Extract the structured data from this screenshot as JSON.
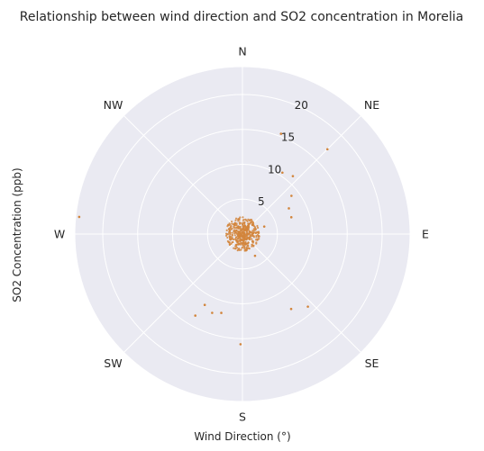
{
  "chart_data": {
    "type": "scatter",
    "projection": "polar",
    "title": "Relationship between wind direction and SO2 concentration in Morelia",
    "xlabel": "Wind Direction (°)",
    "ylabel": "SO2 Concentration (ppb)",
    "theta_direction": "clockwise",
    "theta_zero": "north",
    "direction_labels": [
      {
        "text": "N",
        "angle": 0
      },
      {
        "text": "NE",
        "angle": 45
      },
      {
        "text": "E",
        "angle": 90
      },
      {
        "text": "SE",
        "angle": 135
      },
      {
        "text": "S",
        "angle": 180
      },
      {
        "text": "SW",
        "angle": 225
      },
      {
        "text": "W",
        "angle": 270
      },
      {
        "text": "NW",
        "angle": 315
      }
    ],
    "r_ticks": [
      5,
      10,
      15,
      20
    ],
    "r_tick_labels": [
      "5",
      "10",
      "15",
      "20"
    ],
    "rlim": [
      0,
      24
    ],
    "r_label_angle": 22.5,
    "grid": true,
    "marker_color": "#d2853c",
    "series": [
      {
        "name": "SO2 observations",
        "theta_deg": [
          21,
          33,
          45,
          41,
          52,
          61,
          71,
          71,
          138,
          147,
          150,
          181,
          195,
          201,
          208,
          210,
          276,
          330,
          300
        ],
        "r_ppb": [
          15.4,
          10.5,
          17.2,
          11.0,
          8.9,
          7.6,
          7.4,
          3.3,
          14.0,
          12.8,
          3.6,
          15.8,
          11.7,
          12.1,
          11.5,
          13.5,
          23.5,
          1.2,
          1.0
        ]
      }
    ]
  }
}
